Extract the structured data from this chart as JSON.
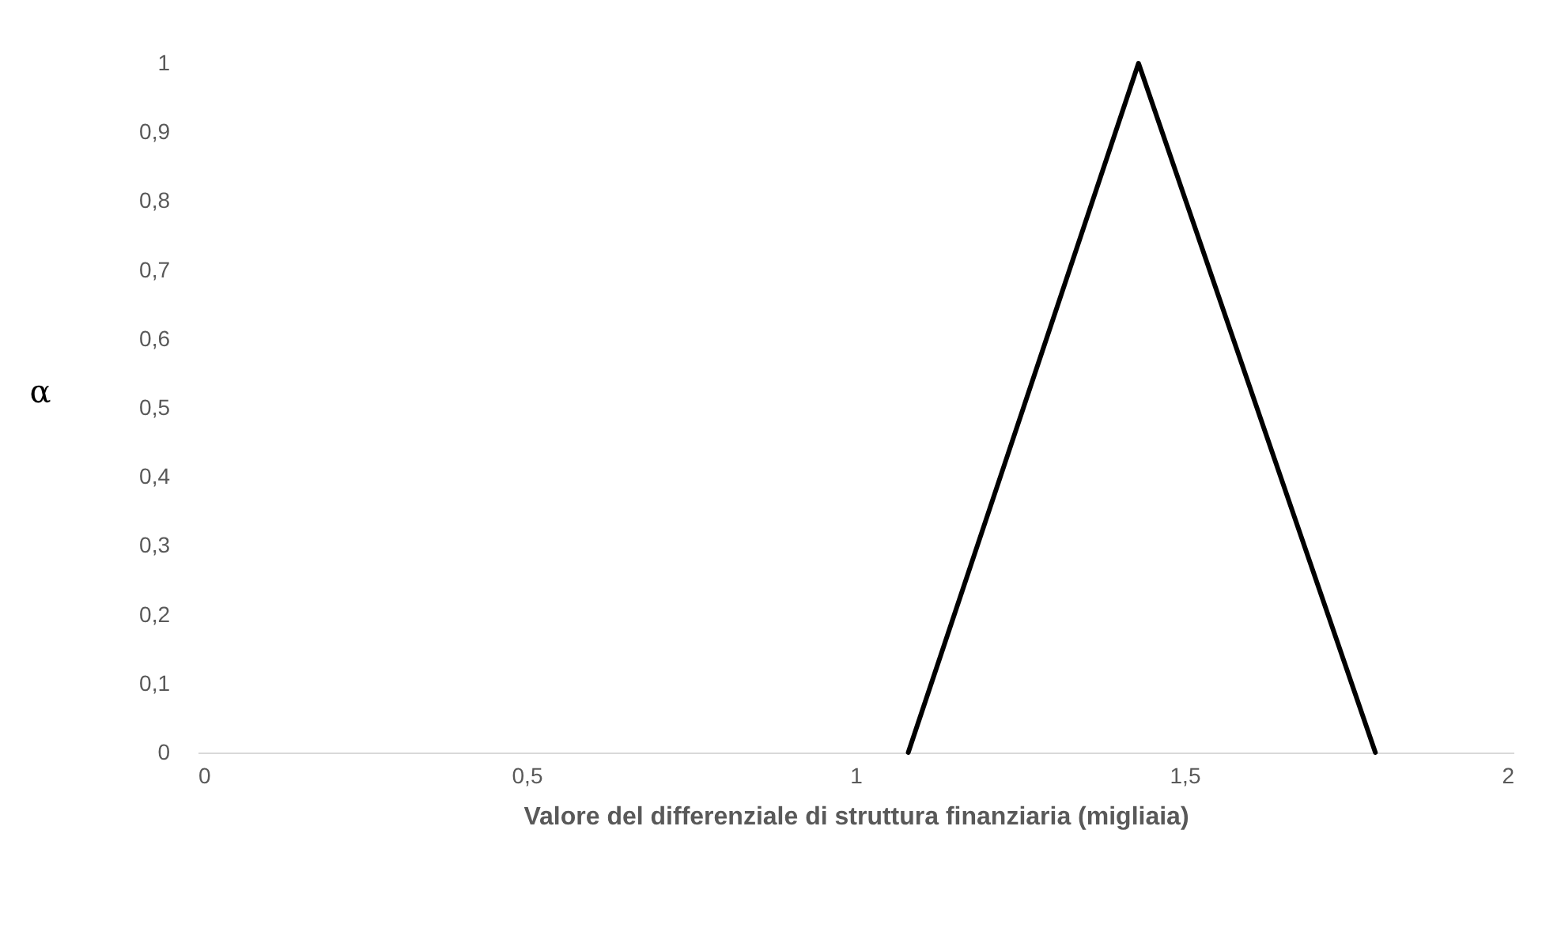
{
  "chart_data": {
    "type": "line",
    "xlabel": "Valore del differenziale di struttura finanziaria (migliaia)",
    "ylabel": "α",
    "x": [
      1.08,
      1.43,
      1.79
    ],
    "series": [
      {
        "color": "#000000",
        "values": [
          0,
          1,
          0
        ]
      }
    ],
    "xlim": [
      0,
      2
    ],
    "xticks": [
      0,
      {
        "value": 0.5,
        "label": "0,5"
      },
      1,
      {
        "value": 1.5,
        "label": "1,5"
      },
      2
    ],
    "ylim": [
      0,
      1
    ],
    "yticks": [
      0,
      {
        "value": 0.1,
        "label": "0,1"
      },
      {
        "value": 0.2,
        "label": "0,2"
      },
      {
        "value": 0.3,
        "label": "0,3"
      },
      {
        "value": 0.4,
        "label": "0,4"
      },
      {
        "value": 0.5,
        "label": "0,5"
      },
      {
        "value": 0.6,
        "label": "0,6"
      },
      {
        "value": 0.7,
        "label": "0,7"
      },
      {
        "value": 0.8,
        "label": "0,8"
      },
      {
        "value": 0.9,
        "label": "0,9"
      },
      1
    ],
    "marker": "none",
    "line_style": "solid"
  }
}
